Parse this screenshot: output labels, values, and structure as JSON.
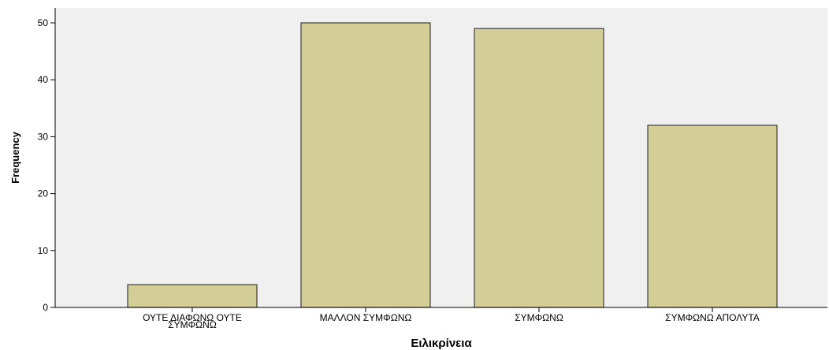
{
  "chart_data": {
    "type": "bar",
    "categories": [
      [
        "ΟΥΤΕ ΔΙΑΦΩΝΩ ΟΥΤΕ",
        "ΣΥΜΦΩΝΩ"
      ],
      [
        "ΜΑΛΛΟΝ ΣΥΜΦΩΝΩ"
      ],
      [
        "ΣΥΜΦΩΝΩ"
      ],
      [
        "ΣΥΜΦΩΝΩ ΑΠΟΛΥΤΑ"
      ]
    ],
    "values": [
      4,
      50,
      49,
      32
    ],
    "xlabel": "Ειλικρίνεια",
    "ylabel": "Frequency",
    "ylim": [
      0,
      50
    ],
    "yticks": [
      0,
      10,
      20,
      30,
      40,
      50
    ],
    "grid": false,
    "colors": {
      "plot_background": "#f0f0f0",
      "bar_fill": "#d3ce97",
      "bar_stroke": "#3c3c3c",
      "axis": "#000000"
    }
  }
}
